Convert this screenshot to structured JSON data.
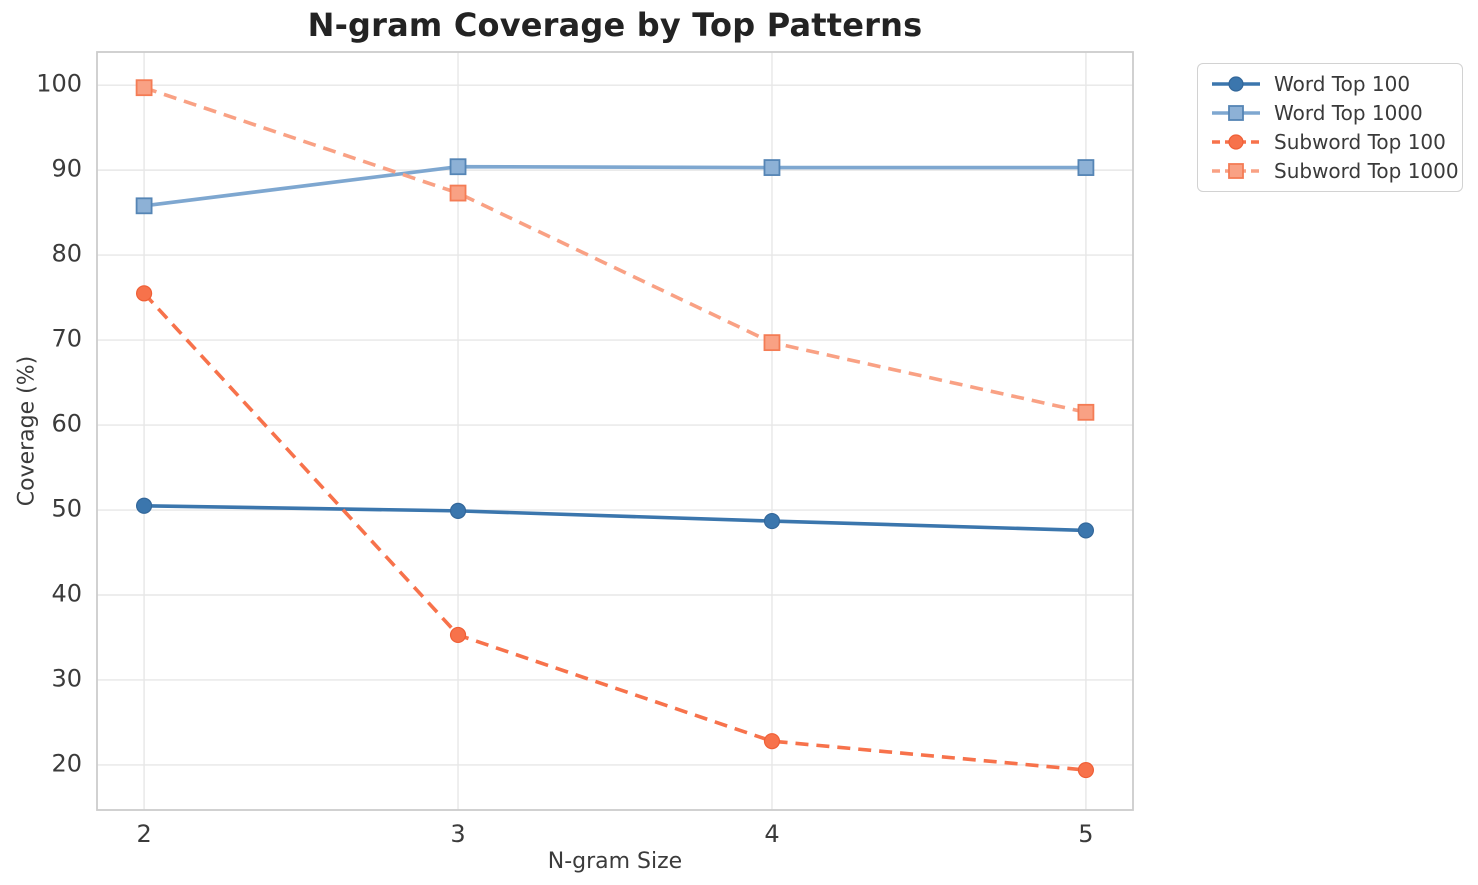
{
  "chart_data": {
    "type": "line",
    "title": "N-gram Coverage by Top Patterns",
    "xlabel": "N-gram Size",
    "ylabel": "Coverage (%)",
    "x": [
      2,
      3,
      4,
      5
    ],
    "xticks": [
      2,
      3,
      4,
      5
    ],
    "yticks": [
      20,
      30,
      40,
      50,
      60,
      70,
      80,
      90,
      100
    ],
    "xlim": [
      1.85,
      5.15
    ],
    "ylim": [
      14.7,
      103.9
    ],
    "grid": true,
    "legend_position": "outside-right",
    "series": [
      {
        "name": "Word Top 100",
        "values": [
          50.5,
          49.9,
          48.7,
          47.6
        ],
        "color": "#3b76ad",
        "marker": "circle",
        "marker_fill": "#3b76ad",
        "marker_edge": "#33679a",
        "dash": "solid"
      },
      {
        "name": "Word Top 1000",
        "values": [
          85.8,
          90.4,
          90.3,
          90.3
        ],
        "color": "#7ea7d0",
        "marker": "square",
        "marker_fill": "#8db1d6",
        "marker_edge": "#5585b5",
        "dash": "solid"
      },
      {
        "name": "Subword Top 100",
        "values": [
          75.5,
          35.3,
          22.8,
          19.4
        ],
        "color": "#f7724b",
        "marker": "circle",
        "marker_fill": "#f7724b",
        "marker_edge": "#ef5f36",
        "dash": "dashed"
      },
      {
        "name": "Subword Top 1000",
        "values": [
          99.7,
          87.3,
          69.7,
          61.5
        ],
        "color": "#f9a184",
        "marker": "square",
        "marker_fill": "#f9a184",
        "marker_edge": "#f47c55",
        "dash": "dashed"
      }
    ],
    "colors": {
      "grid": "#e7e7e7",
      "spine": "#cccccc",
      "tick_text": "#3b3b3b",
      "title_text": "#232323",
      "background": "#ffffff"
    }
  }
}
